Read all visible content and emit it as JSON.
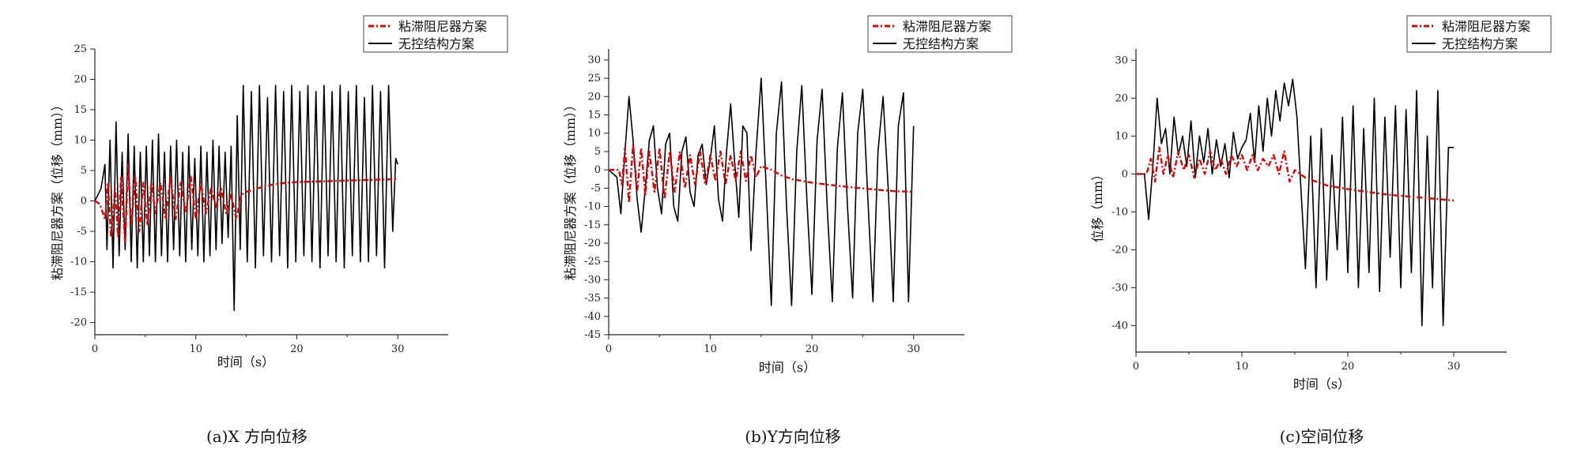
{
  "chart_data": [
    {
      "type": "line",
      "caption": "(a)X 方向位移",
      "xlabel": "时间（s）",
      "ylabel": "粘滞阻尼器方案（位移（mm））",
      "xlim": [
        0,
        35
      ],
      "ylim": [
        -22,
        25
      ],
      "xticks": [
        0,
        10,
        20,
        30
      ],
      "yticks": [
        -20,
        -15,
        -10,
        -5,
        0,
        5,
        10,
        15,
        20,
        25
      ],
      "legend_position": "top-right",
      "series": [
        {
          "name": "粘滞阻尼器方案",
          "color": "#e00000",
          "style": "dash-dot",
          "x": [
            0,
            0.5,
            1.0,
            1.3,
            1.6,
            2.0,
            2.3,
            2.6,
            3.0,
            3.3,
            3.6,
            4.0,
            4.4,
            4.8,
            5.2,
            5.6,
            6.0,
            6.5,
            7.0,
            7.5,
            8.0,
            8.5,
            9.0,
            9.5,
            10.0,
            10.5,
            11.0,
            11.5,
            12.0,
            12.5,
            13.0,
            13.5,
            14.0,
            14.5,
            15.0,
            16,
            17,
            18,
            19,
            20,
            22,
            24,
            26,
            28,
            30
          ],
          "y": [
            0,
            -0.5,
            -3,
            3,
            -6,
            2,
            -6,
            4,
            -7,
            6,
            -4,
            4,
            -5,
            3,
            -4,
            3,
            -2,
            3,
            -3,
            4,
            -3,
            3,
            -2,
            4,
            -3,
            3,
            -2,
            2,
            -1,
            2,
            -2,
            1,
            -3,
            1,
            1.5,
            2,
            2.5,
            2.8,
            3.0,
            3.1,
            3.2,
            3.3,
            3.4,
            3.5,
            3.6
          ]
        },
        {
          "name": "无控结构方案",
          "color": "#000000",
          "style": "solid",
          "x": [
            0,
            0.6,
            1.0,
            1.2,
            1.5,
            1.8,
            2.1,
            2.4,
            2.7,
            3.0,
            3.3,
            3.6,
            3.9,
            4.2,
            4.5,
            4.8,
            5.1,
            5.4,
            5.7,
            6.0,
            6.3,
            6.6,
            6.9,
            7.2,
            7.5,
            7.8,
            8.1,
            8.4,
            8.7,
            9.0,
            9.3,
            9.6,
            9.9,
            10.2,
            10.5,
            10.8,
            11.1,
            11.4,
            11.7,
            12.0,
            12.3,
            12.6,
            12.9,
            13.2,
            13.5,
            13.8,
            14.1,
            14.4,
            14.7,
            15.1,
            15.5,
            15.9,
            16.3,
            16.7,
            17.1,
            17.5,
            17.9,
            18.3,
            18.7,
            19.1,
            19.5,
            19.9,
            20.3,
            20.7,
            21.1,
            21.5,
            21.9,
            22.3,
            22.7,
            23.1,
            23.5,
            23.9,
            24.3,
            24.7,
            25.1,
            25.5,
            25.9,
            26.3,
            26.7,
            27.1,
            27.5,
            27.9,
            28.3,
            28.7,
            29.1,
            29.5,
            29.8,
            30.0
          ],
          "y": [
            0,
            2,
            6,
            -8,
            10,
            -11,
            13,
            -9,
            8,
            -8,
            11,
            -10,
            9,
            -11,
            8,
            -10,
            9,
            -9,
            10,
            -10,
            11,
            -9,
            8,
            -10,
            9,
            -8,
            10,
            -9,
            8,
            -10,
            9,
            -8,
            7,
            -9,
            9,
            -10,
            8,
            -9,
            10,
            -8,
            9,
            -7,
            8,
            -6,
            9,
            -18,
            14,
            -8,
            19,
            -10,
            18,
            -11,
            19,
            -9,
            17,
            -10,
            19,
            -9,
            18,
            -11,
            19,
            -10,
            18,
            -9,
            19,
            -10,
            18,
            -11,
            19,
            -9,
            18,
            -10,
            19,
            -11,
            18,
            -9,
            19,
            -10,
            17,
            -10,
            19,
            -9,
            18,
            -11,
            19,
            -5,
            7,
            6
          ]
        }
      ]
    },
    {
      "type": "line",
      "caption": "(b)Y方向位移",
      "xlabel": "时间（s）",
      "ylabel": "粘滞阻尼器方案（位移（mm））",
      "xlim": [
        0,
        35
      ],
      "ylim": [
        -45,
        33
      ],
      "xticks": [
        0,
        10,
        20,
        30
      ],
      "yticks": [
        -45,
        -40,
        -35,
        -30,
        -25,
        -20,
        -15,
        -10,
        -5,
        0,
        5,
        10,
        15,
        20,
        25,
        30
      ],
      "legend_position": "top-right",
      "series": [
        {
          "name": "粘滞阻尼器方案",
          "color": "#e00000",
          "style": "dash-dot",
          "x": [
            0,
            1.0,
            1.3,
            1.6,
            2.0,
            2.4,
            2.8,
            3.2,
            3.6,
            4.0,
            4.5,
            5.0,
            5.5,
            6.0,
            6.5,
            7.0,
            7.5,
            8.0,
            8.5,
            9.0,
            9.5,
            10.0,
            10.5,
            11.0,
            11.5,
            12.0,
            12.5,
            13.0,
            13.5,
            14.0,
            14.5,
            15.0,
            16,
            17,
            18,
            20,
            22,
            24,
            26,
            28,
            30
          ],
          "y": [
            0,
            0,
            -4,
            6,
            -9,
            7,
            -6,
            6,
            -7,
            5,
            -6,
            6,
            -8,
            5,
            -6,
            5,
            -5,
            4,
            -4,
            5,
            -4,
            4,
            -3,
            5,
            -4,
            4,
            -3,
            5,
            -3,
            4,
            -2,
            1,
            0,
            -1.5,
            -2.5,
            -3.5,
            -4.2,
            -4.8,
            -5.3,
            -5.8,
            -6.0
          ]
        },
        {
          "name": "无控结构方案",
          "color": "#000000",
          "style": "solid",
          "x": [
            0,
            0.8,
            1.2,
            1.6,
            2.0,
            2.4,
            2.8,
            3.2,
            3.6,
            4.0,
            4.4,
            4.8,
            5.2,
            5.6,
            6.0,
            6.4,
            6.8,
            7.2,
            7.6,
            8.0,
            8.4,
            8.8,
            9.2,
            9.6,
            10.0,
            10.4,
            10.8,
            11.2,
            11.6,
            12.0,
            12.4,
            12.8,
            13.2,
            13.6,
            14.0,
            14.5,
            15.0,
            15.5,
            16.0,
            16.5,
            17.0,
            17.5,
            18.0,
            18.5,
            19.0,
            19.5,
            20.0,
            20.5,
            21.0,
            21.5,
            22.0,
            22.5,
            23.0,
            23.5,
            24.0,
            24.5,
            25.0,
            25.5,
            26.0,
            26.5,
            27.0,
            27.5,
            28.0,
            28.5,
            29.0,
            29.5,
            30.0
          ],
          "y": [
            0,
            -2,
            -12,
            5,
            20,
            8,
            -8,
            -17,
            -5,
            8,
            12,
            -5,
            -12,
            7,
            10,
            -10,
            -14,
            5,
            9,
            -6,
            -10,
            4,
            7,
            -4,
            3,
            12,
            -8,
            -14,
            5,
            18,
            2,
            -13,
            12,
            10,
            -22,
            5,
            25,
            -5,
            -37,
            10,
            24,
            -10,
            -37,
            5,
            23,
            -8,
            -34,
            8,
            22,
            -10,
            -36,
            6,
            21,
            -10,
            -35,
            10,
            22,
            -8,
            -36,
            5,
            20,
            -5,
            -36,
            12,
            21,
            -36,
            12
          ]
        }
      ]
    },
    {
      "type": "line",
      "caption": "(c)空间位移",
      "xlabel": "时间（s）",
      "ylabel": "位移（mm）",
      "xlim": [
        0,
        35
      ],
      "ylim": [
        -47,
        33
      ],
      "xticks": [
        0,
        10,
        20,
        30
      ],
      "yticks": [
        -40,
        -30,
        -20,
        -10,
        0,
        10,
        20,
        30
      ],
      "legend_position": "top-right",
      "series": [
        {
          "name": "粘滞阻尼器方案",
          "color": "#e00000",
          "style": "dash-dot",
          "x": [
            0,
            1.0,
            1.4,
            1.8,
            2.2,
            2.6,
            3.0,
            3.5,
            4.0,
            4.5,
            5.0,
            5.5,
            6.0,
            6.5,
            7.0,
            7.5,
            8.0,
            8.5,
            9.0,
            9.5,
            10.0,
            10.5,
            11.0,
            11.5,
            12.0,
            12.5,
            13.0,
            13.5,
            14.0,
            14.5,
            15.0,
            15.5,
            16,
            17,
            18,
            20,
            22,
            24,
            26,
            28,
            30
          ],
          "y": [
            0,
            0,
            4,
            -2,
            7,
            0,
            5,
            -1,
            6,
            1,
            5,
            -1,
            4,
            0,
            6,
            1,
            4,
            0,
            5,
            2,
            5,
            1,
            5,
            1,
            4,
            2,
            5,
            0,
            6,
            -2,
            1,
            0,
            -1,
            -2,
            -3,
            -4,
            -4.8,
            -5.5,
            -6,
            -6.5,
            -7
          ]
        },
        {
          "name": "无控结构方案",
          "color": "#000000",
          "style": "solid",
          "x": [
            0,
            0.8,
            1.2,
            1.6,
            2.0,
            2.4,
            2.8,
            3.2,
            3.6,
            4.0,
            4.4,
            4.8,
            5.2,
            5.6,
            6.0,
            6.4,
            6.8,
            7.2,
            7.6,
            8.0,
            8.4,
            8.8,
            9.2,
            9.6,
            10.0,
            10.4,
            10.8,
            11.2,
            11.6,
            12.0,
            12.4,
            12.8,
            13.2,
            13.6,
            14.0,
            14.4,
            14.8,
            15.2,
            15.6,
            16.0,
            16.5,
            17.0,
            17.5,
            18.0,
            18.5,
            19.0,
            19.5,
            20.0,
            20.5,
            21.0,
            21.5,
            22.0,
            22.5,
            23.0,
            23.5,
            24.0,
            24.5,
            25.0,
            25.5,
            26.0,
            26.5,
            27.0,
            27.5,
            28.0,
            28.5,
            29.0,
            29.5,
            30.0
          ],
          "y": [
            0,
            0,
            -12,
            2,
            20,
            8,
            12,
            0,
            15,
            5,
            10,
            2,
            14,
            -1,
            10,
            3,
            12,
            0,
            9,
            2,
            8,
            -1,
            11,
            4,
            7,
            9,
            16,
            3,
            18,
            6,
            20,
            10,
            22,
            14,
            24,
            18,
            25,
            15,
            -5,
            -25,
            10,
            -30,
            12,
            -28,
            5,
            -20,
            15,
            -26,
            18,
            -30,
            12,
            -26,
            20,
            -31,
            15,
            -22,
            18,
            -30,
            17,
            -26,
            22,
            -40,
            10,
            -30,
            22,
            -40,
            7,
            7
          ]
        }
      ]
    }
  ]
}
